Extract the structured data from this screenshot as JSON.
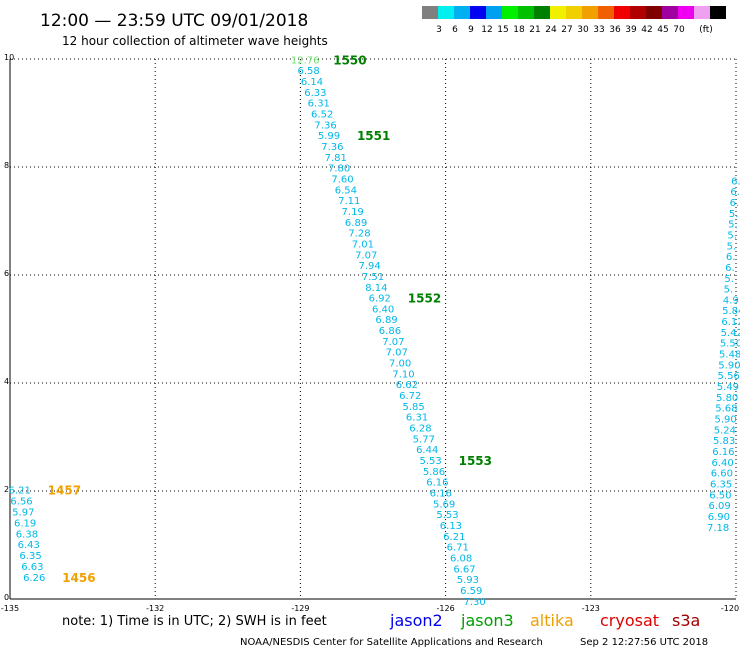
{
  "header": {
    "title": "12:00 — 23:59 UTC 09/01/2018",
    "subtitle": "12 hour collection of altimeter wave heights"
  },
  "colorbar": {
    "colors": [
      "#808080",
      "#00f0f0",
      "#00b0f0",
      "#0000f0",
      "#00a0f0",
      "#00f000",
      "#00c000",
      "#008000",
      "#f0f000",
      "#f0d000",
      "#f0a000",
      "#f06000",
      "#f00000",
      "#b00000",
      "#800000",
      "#a000a0",
      "#f000f0",
      "#f0a0f0",
      "#000000"
    ],
    "labels": [
      "3",
      "6",
      "9",
      "12",
      "15",
      "18",
      "21",
      "24",
      "27",
      "30",
      "33",
      "36",
      "39",
      "42",
      "45",
      "70",
      "(ft)"
    ]
  },
  "chart_data": {
    "type": "scatter",
    "xlim": [
      -135,
      -120
    ],
    "ylim": [
      0,
      10
    ],
    "xticks": [
      "-135",
      "-132",
      "-129",
      "-126",
      "-123",
      "-120"
    ],
    "yticks": [
      "0",
      "2",
      "4",
      "6",
      "8",
      "10"
    ],
    "grid": true,
    "text_color": "#00b8e8",
    "tracks": [
      {
        "name": "track-1550",
        "x_start": -128.9,
        "x_end": -125.4,
        "values": [
          "12.76",
          "6.58",
          "6.14",
          "6.33",
          "6.31",
          "6.52",
          "7.36",
          "5.99",
          "7.36",
          "7.81",
          "7.80",
          "7.60",
          "6.54",
          "7.11",
          "7.19",
          "6.89",
          "7.28",
          "7.01",
          "7.07",
          "7.94",
          "7.51",
          "8.14",
          "6.92",
          "6.40",
          "6.89",
          "6.86",
          "7.07",
          "7.07",
          "7.00",
          "7.10",
          "6.62",
          "6.72",
          "5.85",
          "6.31",
          "6.28",
          "5.77",
          "6.44",
          "5.53",
          "5.86",
          "6.16",
          "6.16",
          "5.69",
          "5.53",
          "6.13",
          "6.21",
          "6.71",
          "6.08",
          "6.67",
          "5.93",
          "6.59",
          "7.30"
        ],
        "value_colors": {
          "0": "#70e070"
        },
        "labels": [
          {
            "text": "1550",
            "index": 0,
            "color": "#008000"
          },
          {
            "text": "1551",
            "index": 7,
            "color": "#008000"
          },
          {
            "text": "1552",
            "index": 22,
            "color": "#008000"
          },
          {
            "text": "1553",
            "index": 37,
            "color": "#008000"
          }
        ]
      },
      {
        "name": "track-1457",
        "x_start": -134.8,
        "x_end": -134.5,
        "values": [
          "6.21",
          "6.56",
          "5.97",
          "6.19",
          "6.38",
          "6.43",
          "6.35",
          "6.63",
          "6.26"
        ],
        "labels": [
          {
            "text": "1457",
            "index": 0,
            "color": "#f0a000"
          },
          {
            "text": "1456",
            "index": 8,
            "color": "#f0a000"
          }
        ]
      },
      {
        "name": "track-east",
        "x_start": -120.1,
        "x_end": -120.6,
        "values": [
          "6.",
          "6.",
          "6.",
          "5.",
          "5.",
          "5.",
          "5.",
          "6.",
          "6.",
          "5.",
          "5.",
          "4.9",
          "5.84",
          "6.12",
          "5.42",
          "5.50",
          "5.48",
          "5.90",
          "5.56",
          "5.49",
          "5.80",
          "5.68",
          "5.90",
          "5.24",
          "5.83",
          "6.16",
          "6.40",
          "6.60",
          "6.35",
          "6.50",
          "6.09",
          "6.90",
          "7.18"
        ],
        "labels": []
      }
    ]
  },
  "footer": {
    "note": "note: 1) Time is in UTC; 2) SWH is in feet",
    "satellites": [
      {
        "name": "jason2",
        "color": "#0000f0"
      },
      {
        "name": "jason3",
        "color": "#00a000"
      },
      {
        "name": "altika",
        "color": "#f0a000"
      },
      {
        "name": "cryosat",
        "color": "#e00000"
      },
      {
        "name": "s3a",
        "color": "#a00000"
      }
    ],
    "credit": "NOAA/NESDIS Center for Satellite Applications and Research",
    "timestamp": "Sep  2 12:27:56 UTC 2018"
  }
}
